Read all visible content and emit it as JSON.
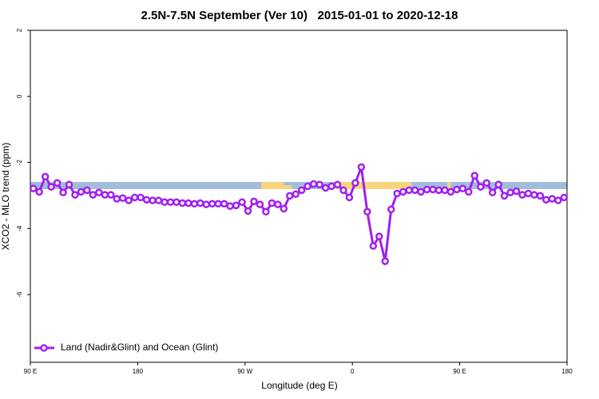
{
  "chart_data": {
    "type": "line",
    "title": "2.5N-7.5N September (Ver 10)   2015-01-01 to 2020-12-18",
    "x_label": "Longitude (deg E)",
    "y_label": "XCO2 - MLO trend (ppm)",
    "xlim": [
      90,
      540
    ],
    "ylim": [
      -8.05,
      2
    ],
    "xticks": [
      {
        "value": 90,
        "label": "90 E"
      },
      180,
      {
        "value": 270,
        "label": "90 W"
      },
      {
        "value": 360,
        "label": "0"
      },
      {
        "value": 450,
        "label": "90 E"
      },
      {
        "value": 540,
        "label": "180"
      }
    ],
    "yticks": [
      2,
      0,
      -2,
      -4,
      -6
    ],
    "legend": "bottom-left",
    "x": [
      92.5,
      97.5,
      102.5,
      107.5,
      112.5,
      117.5,
      122.5,
      127.5,
      132.5,
      137.5,
      142.5,
      147.5,
      152.5,
      157.5,
      162.5,
      167.5,
      172.5,
      177.5,
      182.5,
      187.5,
      192.5,
      197.5,
      202.5,
      207.5,
      212.5,
      217.5,
      222.5,
      227.5,
      232.5,
      237.5,
      242.5,
      247.5,
      252.5,
      257.5,
      262.5,
      267.5,
      272.5,
      277.5,
      282.5,
      287.5,
      292.5,
      297.5,
      302.5,
      307.5,
      312.5,
      317.5,
      322.5,
      327.5,
      332.5,
      337.5,
      342.5,
      347.5,
      352.5,
      357.5,
      362.5,
      367.5,
      372.5,
      377.5,
      382.5,
      387.5,
      392.5,
      397.5,
      402.5,
      407.5,
      412.5,
      417.5,
      422.5,
      427.5,
      432.5,
      437.5,
      442.5,
      447.5,
      452.5,
      457.5,
      462.5,
      467.5,
      472.5,
      477.5,
      482.5,
      487.5,
      492.5,
      497.5,
      502.5,
      507.5,
      512.5,
      517.5,
      522.5,
      527.5,
      532.5,
      537.5
    ],
    "series": [
      {
        "name": "Land (Nadir&Glint) and Ocean (Glint)",
        "color": "#a020f0",
        "values": [
          -2.79,
          -2.89,
          -2.43,
          -2.74,
          -2.62,
          -2.91,
          -2.67,
          -2.98,
          -2.89,
          -2.84,
          -2.98,
          -2.91,
          -2.98,
          -2.98,
          -3.1,
          -3.08,
          -3.15,
          -3.06,
          -3.06,
          -3.13,
          -3.15,
          -3.15,
          -3.2,
          -3.2,
          -3.2,
          -3.23,
          -3.23,
          -3.25,
          -3.23,
          -3.27,
          -3.25,
          -3.25,
          -3.25,
          -3.32,
          -3.3,
          -3.2,
          -3.47,
          -3.18,
          -3.27,
          -3.49,
          -3.23,
          -3.27,
          -3.4,
          -3.01,
          -2.96,
          -2.84,
          -2.72,
          -2.65,
          -2.67,
          -2.77,
          -2.72,
          -2.67,
          -2.84,
          -3.06,
          -2.62,
          -2.14,
          -3.49,
          -4.53,
          -4.24,
          -4.99,
          -3.42,
          -2.94,
          -2.89,
          -2.84,
          -2.84,
          -2.89,
          -2.82,
          -2.82,
          -2.84,
          -2.84,
          -2.89,
          -2.82,
          -2.79,
          -2.89,
          -2.4,
          -2.74,
          -2.62,
          -2.91,
          -2.67,
          -3.01,
          -2.91,
          -2.87,
          -2.98,
          -2.94,
          -2.98,
          -3.01,
          -3.13,
          -3.1,
          -3.15,
          -3.06
        ]
      }
    ]
  }
}
